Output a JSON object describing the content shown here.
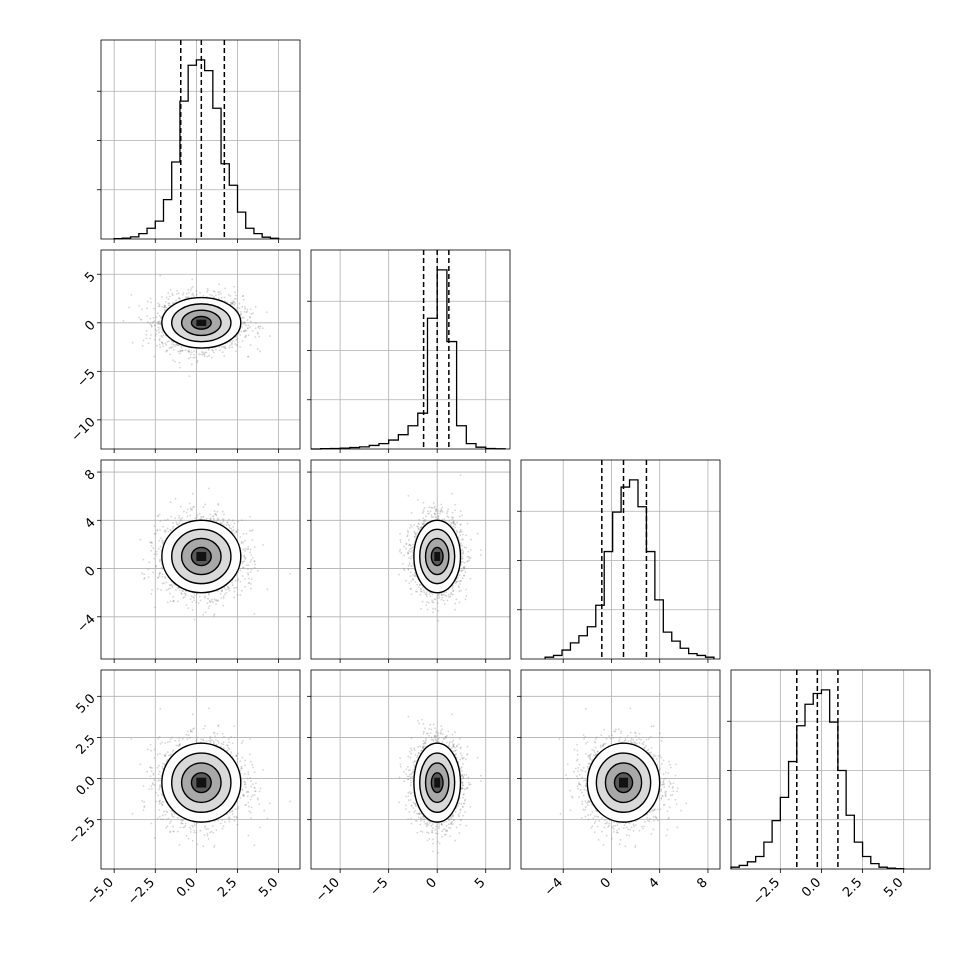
{
  "figure": {
    "type": "corner-plot"
  },
  "chart_data": [
    {
      "type": "histogram",
      "variable_index": 0,
      "x_range": [
        -5.8,
        6.3
      ],
      "x_ticks": [
        -5.0,
        -2.5,
        0.0,
        2.5,
        5.0
      ],
      "x_tick_labels": [
        "−5.0",
        "−2.5",
        "0.0",
        "2.5",
        "5.0"
      ],
      "quantile_lines": [
        -0.95,
        0.3,
        1.7
      ],
      "bin_edges": [
        -5.0,
        -4.5,
        -4.0,
        -3.5,
        -3.0,
        -2.5,
        -2.0,
        -1.5,
        -1.0,
        -0.5,
        0.0,
        0.5,
        1.0,
        1.5,
        2.0,
        2.5,
        3.0,
        3.5,
        4.0,
        4.5,
        5.0
      ],
      "bin_heights": [
        0.002,
        0.005,
        0.012,
        0.03,
        0.06,
        0.1,
        0.22,
        0.43,
        0.77,
        0.97,
        1.0,
        0.94,
        0.73,
        0.42,
        0.3,
        0.15,
        0.06,
        0.03,
        0.01,
        0.004
      ],
      "grid": true
    },
    {
      "type": "histogram",
      "variable_index": 1,
      "x_range": [
        -13,
        7.5
      ],
      "x_ticks": [
        -10,
        -5,
        0,
        5
      ],
      "x_tick_labels": [
        "−10",
        "−5",
        "0",
        "5"
      ],
      "quantile_lines": [
        -1.4,
        0.0,
        1.2
      ],
      "bin_edges": [
        -13,
        -12,
        -11,
        -10,
        -9,
        -8,
        -7,
        -6,
        -5,
        -4,
        -3,
        -2,
        -1,
        0,
        1,
        2,
        3,
        4,
        5,
        6,
        7
      ],
      "bin_heights": [
        0.0,
        0.002,
        0.003,
        0.005,
        0.008,
        0.012,
        0.02,
        0.03,
        0.05,
        0.08,
        0.13,
        0.2,
        0.73,
        1.0,
        0.6,
        0.13,
        0.03,
        0.01,
        0.003,
        0.001
      ],
      "grid": true
    },
    {
      "type": "histogram",
      "variable_index": 2,
      "x_range": [
        -7.5,
        9
      ],
      "x_ticks": [
        -4,
        0,
        4,
        8
      ],
      "x_tick_labels": [
        "−4",
        "0",
        "4",
        "8"
      ],
      "quantile_lines": [
        -0.8,
        1.0,
        2.9
      ],
      "bin_edges": [
        -5.5,
        -4.8,
        -4.1,
        -3.4,
        -2.7,
        -2.0,
        -1.3,
        -0.6,
        0.1,
        0.8,
        1.5,
        2.2,
        2.9,
        3.6,
        4.3,
        5.0,
        5.7,
        6.4,
        7.1,
        7.8,
        8.5
      ],
      "bin_heights": [
        0.01,
        0.02,
        0.05,
        0.09,
        0.13,
        0.18,
        0.3,
        0.6,
        0.82,
        0.96,
        1.0,
        0.85,
        0.6,
        0.33,
        0.15,
        0.1,
        0.06,
        0.03,
        0.02,
        0.01
      ],
      "grid": true
    },
    {
      "type": "histogram",
      "variable_index": 3,
      "x_range": [
        -5.5,
        6.6
      ],
      "x_ticks": [
        -2.5,
        0.0,
        2.5,
        5.0
      ],
      "x_tick_labels": [
        "−2.5",
        "0.0",
        "2.5",
        "5.0"
      ],
      "quantile_lines": [
        -1.5,
        -0.25,
        1.0
      ],
      "bin_edges": [
        -5.5,
        -5.0,
        -4.5,
        -4.0,
        -3.5,
        -3.0,
        -2.5,
        -2.0,
        -1.5,
        -1.0,
        -0.5,
        0.0,
        0.5,
        1.0,
        1.5,
        2.0,
        2.5,
        3.0,
        3.5,
        4.0,
        4.5,
        5.0
      ],
      "bin_heights": [
        0.01,
        0.02,
        0.04,
        0.07,
        0.15,
        0.27,
        0.4,
        0.6,
        0.8,
        0.92,
        0.98,
        1.0,
        0.82,
        0.55,
        0.3,
        0.15,
        0.07,
        0.03,
        0.01,
        0.005,
        0.002
      ],
      "grid": true
    },
    {
      "type": "scatter-density",
      "x_variable": 0,
      "y_variable": 1,
      "x_range": [
        -5.8,
        6.3
      ],
      "y_range": [
        -13,
        7.5
      ],
      "y_ticks": [
        -10,
        -5,
        0,
        5
      ],
      "y_tick_labels": [
        "−10",
        "−5",
        "0",
        "5"
      ],
      "center": [
        0.3,
        0.0
      ],
      "sigma": [
        1.2,
        1.3
      ],
      "grid": true
    },
    {
      "type": "scatter-density",
      "x_variable": 0,
      "y_variable": 2,
      "x_range": [
        -5.8,
        6.3
      ],
      "y_range": [
        -7.5,
        9
      ],
      "y_ticks": [
        -4,
        0,
        4,
        8
      ],
      "y_tick_labels": [
        "−4",
        "0",
        "4",
        "8"
      ],
      "center": [
        0.3,
        1.0
      ],
      "sigma": [
        1.2,
        1.5
      ],
      "grid": true
    },
    {
      "type": "scatter-density",
      "x_variable": 1,
      "y_variable": 2,
      "x_range": [
        -13,
        7.5
      ],
      "y_range": [
        -7.5,
        9
      ],
      "center": [
        0.0,
        1.0
      ],
      "sigma": [
        1.2,
        1.5
      ],
      "grid": true
    },
    {
      "type": "scatter-density",
      "x_variable": 0,
      "y_variable": 3,
      "x_range": [
        -5.8,
        6.3
      ],
      "y_range": [
        -5.5,
        6.6
      ],
      "y_ticks": [
        -2.5,
        0.0,
        2.5,
        5.0
      ],
      "y_tick_labels": [
        "−2.5",
        "0.0",
        "2.5",
        "5.0"
      ],
      "center": [
        0.3,
        -0.25
      ],
      "sigma": [
        1.2,
        1.2
      ],
      "grid": true
    },
    {
      "type": "scatter-density",
      "x_variable": 1,
      "y_variable": 3,
      "x_range": [
        -13,
        7.5
      ],
      "y_range": [
        -5.5,
        6.6
      ],
      "center": [
        0.0,
        -0.25
      ],
      "sigma": [
        1.2,
        1.2
      ],
      "grid": true
    },
    {
      "type": "scatter-density",
      "x_variable": 2,
      "y_variable": 3,
      "x_range": [
        -7.5,
        9
      ],
      "y_range": [
        -5.5,
        6.6
      ],
      "center": [
        1.0,
        -0.25
      ],
      "sigma": [
        1.5,
        1.2
      ],
      "grid": true
    }
  ]
}
